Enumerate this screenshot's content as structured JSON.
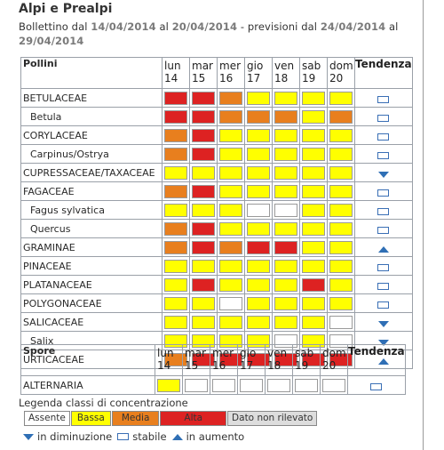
{
  "title": "Alpi e Prealpi",
  "bulletin": {
    "prefix": "Bollettino dal",
    "from": "14/04/2014",
    "mid": "al",
    "to": "20/04/2014",
    "forecast_prefix": "- previsioni dal",
    "forecast_from": "24/04/2014",
    "forecast_mid": "al",
    "forecast_to": "29/04/2014"
  },
  "colors": {
    "absent": "#ffffff",
    "low": "#ffff00",
    "medium": "#e87f1e",
    "high": "#dd2222",
    "na": "#dddddd",
    "trend_icon": "#2f6fb5"
  },
  "days": [
    {
      "name": "lun",
      "num": "14"
    },
    {
      "name": "mar",
      "num": "15"
    },
    {
      "name": "mer",
      "num": "16"
    },
    {
      "name": "gio",
      "num": "17"
    },
    {
      "name": "ven",
      "num": "18"
    },
    {
      "name": "sab",
      "num": "19"
    },
    {
      "name": "dom",
      "num": "20"
    }
  ],
  "pollen_header": "Pollini",
  "spore_header": "Spore",
  "trend_header": "Tendenza",
  "pollen_rows": [
    {
      "name": "BETULACEAE",
      "sub": false,
      "levels": [
        "high",
        "high",
        "medium",
        "low",
        "low",
        "low",
        "low"
      ],
      "trend": "stable"
    },
    {
      "name": "Betula",
      "sub": true,
      "levels": [
        "high",
        "high",
        "medium",
        "medium",
        "medium",
        "low",
        "medium"
      ],
      "trend": "stable"
    },
    {
      "name": "CORYLACEAE",
      "sub": false,
      "levels": [
        "medium",
        "high",
        "low",
        "low",
        "low",
        "low",
        "low"
      ],
      "trend": "stable"
    },
    {
      "name": "Carpinus/Ostrya",
      "sub": true,
      "levels": [
        "medium",
        "high",
        "low",
        "low",
        "low",
        "low",
        "low"
      ],
      "trend": "stable"
    },
    {
      "name": "CUPRESSACEAE/TAXACEAE",
      "sub": false,
      "levels": [
        "low",
        "low",
        "low",
        "low",
        "low",
        "low",
        "low"
      ],
      "trend": "down"
    },
    {
      "name": "FAGACEAE",
      "sub": false,
      "levels": [
        "medium",
        "high",
        "low",
        "low",
        "low",
        "low",
        "low"
      ],
      "trend": "stable"
    },
    {
      "name": "Fagus sylvatica",
      "sub": true,
      "levels": [
        "low",
        "low",
        "low",
        "absent",
        "absent",
        "low",
        "low"
      ],
      "trend": "stable"
    },
    {
      "name": "Quercus",
      "sub": true,
      "levels": [
        "medium",
        "high",
        "low",
        "low",
        "low",
        "low",
        "low"
      ],
      "trend": "stable"
    },
    {
      "name": "GRAMINAE",
      "sub": false,
      "levels": [
        "medium",
        "high",
        "medium",
        "high",
        "high",
        "low",
        "low"
      ],
      "trend": "up"
    },
    {
      "name": "PINACEAE",
      "sub": false,
      "levels": [
        "low",
        "low",
        "low",
        "low",
        "low",
        "low",
        "low"
      ],
      "trend": "stable"
    },
    {
      "name": "PLATANACEAE",
      "sub": false,
      "levels": [
        "low",
        "high",
        "low",
        "low",
        "low",
        "high",
        "low"
      ],
      "trend": "stable"
    },
    {
      "name": "POLYGONACEAE",
      "sub": false,
      "levels": [
        "low",
        "low",
        "absent",
        "low",
        "low",
        "low",
        "low"
      ],
      "trend": "stable"
    },
    {
      "name": "SALICACEAE",
      "sub": false,
      "levels": [
        "low",
        "low",
        "low",
        "low",
        "low",
        "low",
        "absent"
      ],
      "trend": "down"
    },
    {
      "name": "Salix",
      "sub": true,
      "levels": [
        "low",
        "low",
        "low",
        "low",
        "absent",
        "low",
        "absent"
      ],
      "trend": "down"
    },
    {
      "name": "URTICACEAE",
      "sub": false,
      "levels": [
        "medium",
        "high",
        "high",
        "high",
        "high",
        "high",
        "high"
      ],
      "trend": "up"
    }
  ],
  "spore_rows": [
    {
      "name": "ALTERNARIA",
      "sub": false,
      "levels": [
        "low",
        "absent",
        "absent",
        "absent",
        "absent",
        "absent",
        "absent"
      ],
      "trend": "stable"
    }
  ],
  "legend_title": "Legenda classi di concentrazione",
  "legend": [
    {
      "label": "Assente",
      "level": "absent"
    },
    {
      "label": "Bassa",
      "level": "low"
    },
    {
      "label": "Media",
      "level": "medium"
    },
    {
      "label": "Alta",
      "level": "high"
    },
    {
      "label": "Dato non rilevato",
      "level": "na"
    }
  ],
  "trend_legend": {
    "down_label": "in diminuzione",
    "stable_label": "stabile",
    "up_label": "in aumento"
  }
}
